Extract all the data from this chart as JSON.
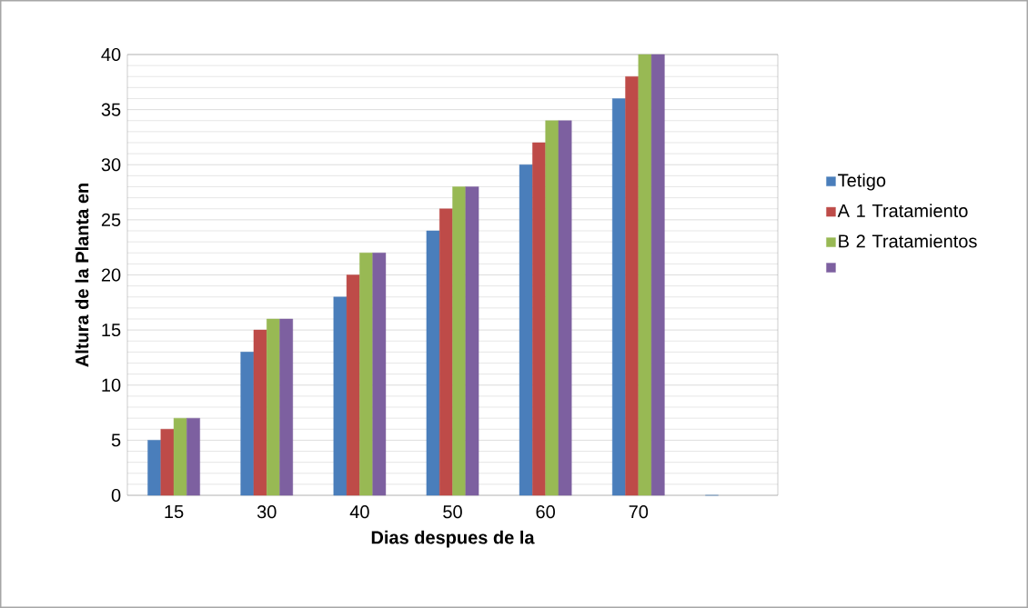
{
  "chart_data": {
    "type": "bar",
    "xlabel": "Dias despues de la",
    "ylabel": "Altura de la Planta en",
    "categories": [
      "15",
      "30",
      "40",
      "50",
      "60",
      "70",
      null
    ],
    "series": [
      {
        "name": "Tetigo",
        "color": "#4a7ebb",
        "values": [
          5,
          13,
          18,
          24,
          30,
          36,
          0
        ]
      },
      {
        "name": "A 1 Tratamiento",
        "color": "#be4b48",
        "values": [
          6,
          15,
          20,
          26,
          32,
          38,
          null
        ]
      },
      {
        "name": "B 2 Tratamientos",
        "color": "#98b954",
        "values": [
          7,
          16,
          22,
          28,
          34,
          40,
          null
        ]
      },
      {
        "color": "#7d60a0",
        "values": [
          7,
          16,
          22,
          28,
          34,
          40,
          null
        ]
      }
    ],
    "ylim": [
      0,
      40
    ],
    "yticks": [
      0,
      5,
      10,
      15,
      20,
      25,
      30,
      35,
      40
    ],
    "grid": "y",
    "legend": "right"
  }
}
